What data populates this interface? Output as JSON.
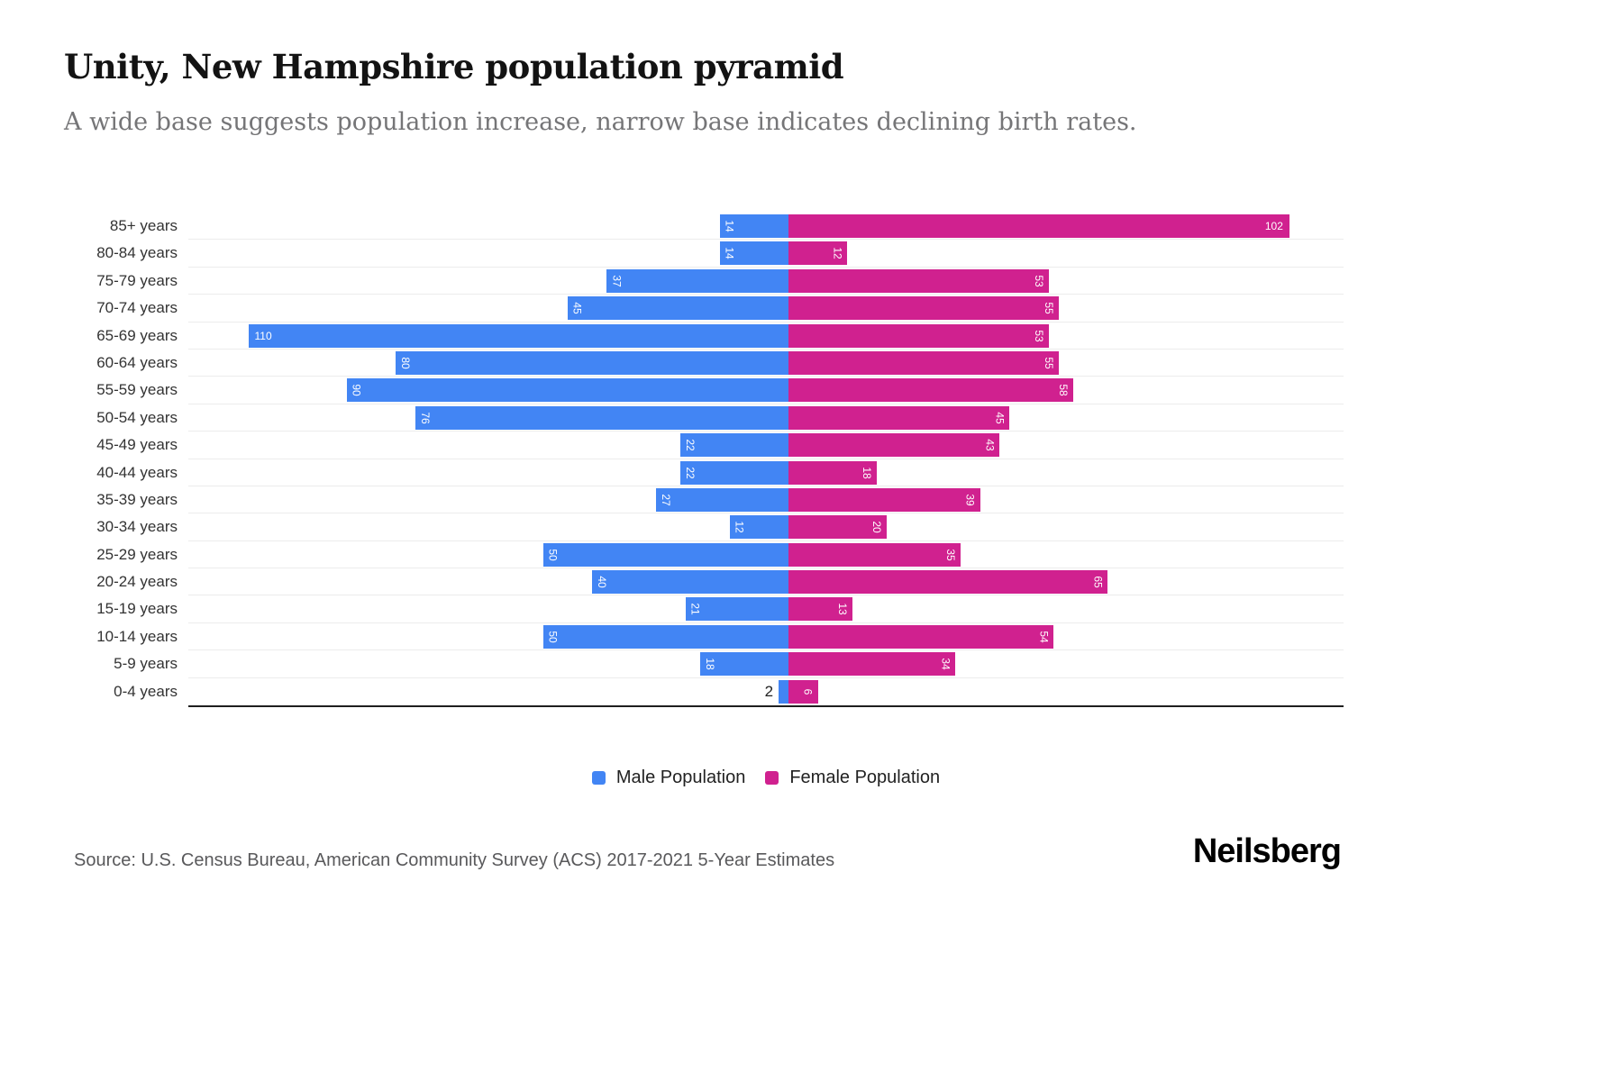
{
  "header": {
    "title": "Unity, New Hampshire population pyramid",
    "subtitle": "A wide base suggests population increase, narrow base indicates declining birth rates."
  },
  "chart_data": {
    "type": "bar",
    "variant": "population-pyramid",
    "title": "Unity, New Hampshire population pyramid",
    "categories": [
      "85+ years",
      "80-84 years",
      "75-79 years",
      "70-74 years",
      "65-69 years",
      "60-64 years",
      "55-59 years",
      "50-54 years",
      "45-49 years",
      "40-44 years",
      "35-39 years",
      "30-34 years",
      "25-29 years",
      "20-24 years",
      "15-19 years",
      "10-14 years",
      "5-9 years",
      "0-4 years"
    ],
    "series": [
      {
        "name": "Male Population",
        "color": "#4285f4",
        "direction": "left",
        "values": [
          14,
          14,
          37,
          45,
          110,
          80,
          90,
          76,
          22,
          22,
          27,
          12,
          50,
          40,
          21,
          50,
          18,
          2
        ]
      },
      {
        "name": "Female Population",
        "color": "#d0218f",
        "direction": "right",
        "values": [
          102,
          12,
          53,
          55,
          53,
          55,
          58,
          45,
          43,
          18,
          39,
          20,
          35,
          65,
          13,
          54,
          34,
          6
        ]
      }
    ],
    "xlim_each_side": 120,
    "grid": "horizontal",
    "legend_position": "bottom",
    "bar_value_labels": "inside-ends"
  },
  "footer": {
    "source": "Source: U.S. Census Bureau, American Community Survey (ACS) 2017-2021 5-Year Estimates",
    "brand": "Neilsberg"
  }
}
